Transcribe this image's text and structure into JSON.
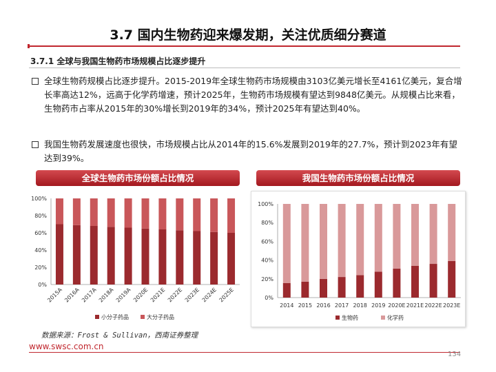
{
  "header": {
    "title": "3.7 国内生物药迎来爆发期，关注优质细分赛道",
    "section": "3.7.1 全球与我国生物药市场规模占比逐步提升"
  },
  "bullets": [
    "全球生物药规模占比逐步提升。2015-2019年全球生物药市场规模由3103亿美元增长至4161亿美元，复合增长率高达12%，远高于化学药增速，预计2025年，生物药市场规模有望达到9848亿美元。从规模占比来看，生物药市占率从2015年的30%增长到2019年的34%，预计2025年有望达到40%。",
    "我国生物药发展速度也很快，市场规模占比从2014年的15.6%发展到2019年的27.7%，预计到2023年有望达到39%。"
  ],
  "colors": {
    "accent": "#c0262d",
    "dark_red": "#9b2a2e",
    "mid_red": "#c9575a",
    "pink": "#d9999a"
  },
  "chart_data": [
    {
      "type": "bar",
      "stacked": true,
      "title": "全球生物药市场份额占比情况",
      "categories": [
        "2015A",
        "2016A",
        "2017A",
        "2018A",
        "2019A",
        "2020E",
        "2021E",
        "2022E",
        "2023E",
        "2024E",
        "2025E"
      ],
      "series": [
        {
          "name": "小分子药品",
          "color": "#9b2a2e",
          "values": [
            70,
            69,
            68,
            67,
            66,
            65,
            64,
            63,
            62,
            61,
            60
          ]
        },
        {
          "name": "大分子药品",
          "color": "#c9575a",
          "values": [
            30,
            31,
            32,
            33,
            34,
            35,
            36,
            37,
            38,
            39,
            40
          ]
        }
      ],
      "yticks": [
        "0%",
        "20%",
        "40%",
        "60%",
        "80%",
        "100%"
      ],
      "ylim": [
        0,
        100
      ],
      "legend": "bottom"
    },
    {
      "type": "bar",
      "stacked": true,
      "title": "我国生物药市场份额占比情况",
      "categories": [
        "2014",
        "2015",
        "2016",
        "2017",
        "2018",
        "2019",
        "2020E",
        "2021E",
        "2022E",
        "2023E"
      ],
      "series": [
        {
          "name": "生物药",
          "color": "#9b2a2e",
          "values": [
            15.6,
            17,
            20,
            22,
            24,
            27.7,
            31,
            34,
            36,
            39
          ]
        },
        {
          "name": "化学药",
          "color": "#d9999a",
          "values": [
            84.4,
            83,
            80,
            78,
            76,
            72.3,
            69,
            66,
            64,
            61
          ]
        }
      ],
      "yticks": [
        "0%",
        "20%",
        "40%",
        "60%",
        "80%",
        "100%"
      ],
      "ylim": [
        0,
        100
      ],
      "legend": "bottom"
    }
  ],
  "footer": {
    "source": "数据来源：Frost & Sullivan，西南证券整理",
    "url": "www.swsc.com.cn",
    "page": "134"
  }
}
